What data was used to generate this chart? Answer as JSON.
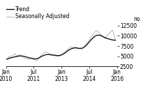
{
  "title": "",
  "ylabel": "no.",
  "ylim": [
    2500,
    12500
  ],
  "yticks": [
    2500,
    5000,
    7500,
    10000,
    12500
  ],
  "legend_entries": [
    "Trend",
    "Seasonally Adjusted"
  ],
  "trend_color": "#000000",
  "seas_color": "#b0b0b0",
  "background_color": "#ffffff",
  "x_tick_labels": [
    "Jan\n2010",
    "Jul\n2011",
    "Jan\n2013",
    "Jul\n2014",
    "Jan\n2016"
  ],
  "x_tick_positions": [
    0,
    18,
    36,
    54,
    72
  ],
  "trend_values": [
    4200,
    4300,
    4450,
    4550,
    4650,
    4750,
    4850,
    4900,
    5000,
    5050,
    5050,
    5000,
    4900,
    4800,
    4700,
    4600,
    4500,
    4400,
    4350,
    4300,
    4350,
    4500,
    4700,
    4900,
    5100,
    5250,
    5350,
    5400,
    5400,
    5350,
    5300,
    5250,
    5200,
    5150,
    5150,
    5200,
    5300,
    5500,
    5700,
    6000,
    6300,
    6550,
    6750,
    6900,
    7000,
    7050,
    7000,
    6950,
    6900,
    6950,
    7050,
    7300,
    7650,
    8050,
    8500,
    8950,
    9350,
    9700,
    10000,
    10150,
    10200,
    10150,
    10000,
    9800,
    9600,
    9450,
    9300,
    9200,
    9100,
    9000,
    8950,
    8950
  ],
  "seas_values": [
    4100,
    4400,
    5000,
    4700,
    5100,
    5300,
    5600,
    5000,
    5200,
    5300,
    5000,
    4600,
    4500,
    4400,
    4300,
    4200,
    4500,
    4600,
    4100,
    4000,
    3900,
    4300,
    4800,
    5300,
    5600,
    5900,
    6100,
    5800,
    5600,
    5300,
    5100,
    5300,
    5000,
    4900,
    4900,
    5100,
    5200,
    5600,
    6000,
    6300,
    6700,
    7000,
    7200,
    7300,
    7100,
    7200,
    7000,
    6800,
    6900,
    6700,
    7000,
    7400,
    8000,
    8400,
    9000,
    9600,
    10100,
    10600,
    11100,
    11300,
    10900,
    10500,
    10100,
    9700,
    9400,
    9800,
    10300,
    10600,
    11100,
    11400,
    10400,
    8800
  ]
}
